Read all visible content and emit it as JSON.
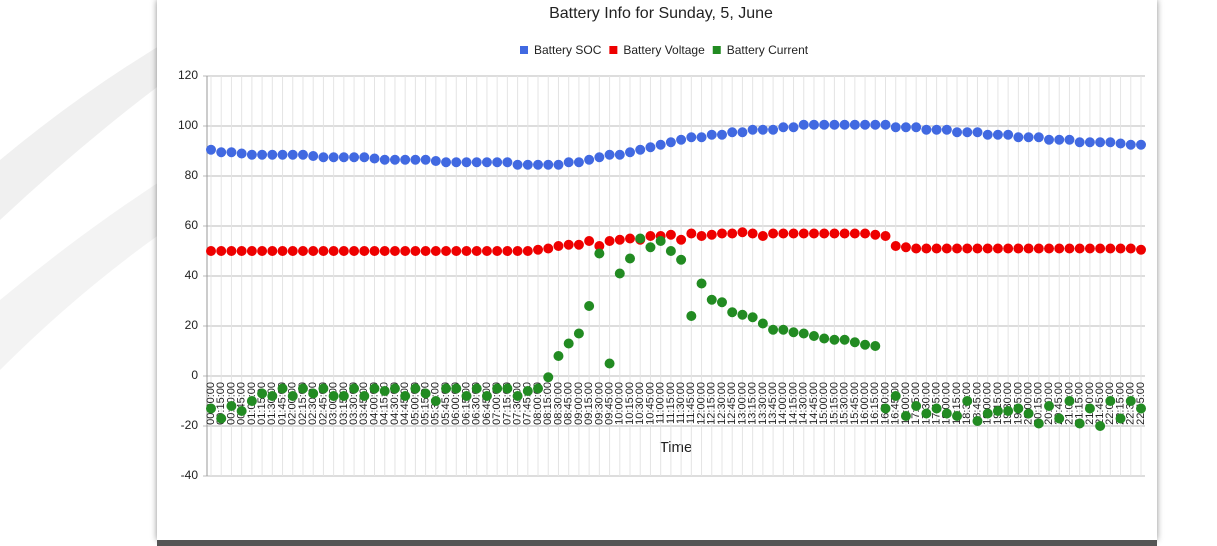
{
  "chart_data": {
    "type": "scatter",
    "title": "Battery Info for Sunday, 5, June",
    "x_label": "Time",
    "categories": [
      "00:00:00",
      "00:15:00",
      "00:30:00",
      "00:45:00",
      "01:00:00",
      "01:15:00",
      "01:30:00",
      "01:45:00",
      "02:00:00",
      "02:15:00",
      "02:30:00",
      "02:45:00",
      "03:00:00",
      "03:15:00",
      "03:30:00",
      "03:45:00",
      "04:00:00",
      "04:15:00",
      "04:30:00",
      "04:45:00",
      "05:00:00",
      "05:15:00",
      "05:30:00",
      "05:45:00",
      "06:00:00",
      "06:15:00",
      "06:30:00",
      "06:45:00",
      "07:00:00",
      "07:15:00",
      "07:30:00",
      "07:45:00",
      "08:00:00",
      "08:15:00",
      "08:30:00",
      "08:45:00",
      "09:00:00",
      "09:15:00",
      "09:30:00",
      "09:45:00",
      "10:00:00",
      "10:15:00",
      "10:30:00",
      "10:45:00",
      "11:00:00",
      "11:15:00",
      "11:30:00",
      "11:45:00",
      "12:00:00",
      "12:15:00",
      "12:30:00",
      "12:45:00",
      "13:00:00",
      "13:15:00",
      "13:30:00",
      "13:45:00",
      "14:00:00",
      "14:15:00",
      "14:30:00",
      "14:45:00",
      "15:00:00",
      "15:15:00",
      "15:30:00",
      "15:45:00",
      "16:00:00",
      "16:15:00",
      "16:30:00",
      "16:45:00",
      "17:00:00",
      "17:15:00",
      "17:30:00",
      "17:45:00",
      "18:00:00",
      "18:15:00",
      "18:30:00",
      "18:45:00",
      "19:00:00",
      "19:15:00",
      "19:30:00",
      "19:45:00",
      "20:00:00",
      "20:15:00",
      "20:30:00",
      "20:45:00",
      "21:00:00",
      "21:15:00",
      "21:30:00",
      "21:45:00",
      "22:00:00",
      "22:15:00",
      "22:30:00",
      "22:45:00"
    ],
    "series": [
      {
        "name": "Battery SOC",
        "color": "#4169e1",
        "line": false,
        "values": [
          90.5,
          89.5,
          89.5,
          89,
          88.5,
          88.5,
          88.5,
          88.5,
          88.5,
          88.5,
          88,
          87.5,
          87.5,
          87.5,
          87.5,
          87.5,
          87,
          86.5,
          86.5,
          86.5,
          86.5,
          86.5,
          86,
          85.5,
          85.5,
          85.5,
          85.5,
          85.5,
          85.5,
          85.5,
          84.5,
          84.5,
          84.5,
          84.5,
          84.5,
          85.5,
          85.5,
          86.5,
          87.5,
          88.5,
          88.5,
          89.5,
          90.5,
          91.5,
          92.5,
          93.5,
          94.5,
          95.5,
          95.5,
          96.5,
          96.5,
          97.5,
          97.5,
          98.5,
          98.5,
          98.5,
          99.5,
          99.5,
          100.5,
          100.5,
          100.5,
          100.5,
          100.5,
          100.5,
          100.5,
          100.5,
          100.5,
          99.5,
          99.5,
          99.5,
          98.5,
          98.5,
          98.5,
          97.5,
          97.5,
          97.5,
          96.5,
          96.5,
          96.5,
          95.5,
          95.5,
          95.5,
          94.5,
          94.5,
          94.5,
          93.5,
          93.5,
          93.5,
          93.5,
          93,
          92.5,
          92.5
        ]
      },
      {
        "name": "Battery Voltage",
        "color": "#ee0000",
        "line": false,
        "values": [
          50,
          50,
          50,
          50,
          50,
          50,
          50,
          50,
          50,
          50,
          50,
          50,
          50,
          50,
          50,
          50,
          50,
          50,
          50,
          50,
          50,
          50,
          50,
          50,
          50,
          50,
          50,
          50,
          50,
          50,
          50,
          50,
          50.5,
          51,
          52,
          52.5,
          52.5,
          54,
          52,
          54,
          54.5,
          55,
          54.5,
          56,
          56,
          56.5,
          54.5,
          57,
          56,
          56.5,
          57,
          57,
          57.5,
          57,
          56,
          57,
          57,
          57,
          57,
          57,
          57,
          57,
          57,
          57,
          57,
          56.5,
          56,
          52,
          51.5,
          51,
          51,
          51,
          51,
          51,
          51,
          51,
          51,
          51,
          51,
          51,
          51,
          51,
          51,
          51,
          51,
          51,
          51,
          51,
          51,
          51,
          51,
          50.5
        ]
      },
      {
        "name": "Battery Current",
        "color": "#228b22",
        "line": true,
        "values": [
          -13,
          -17,
          -12,
          -14,
          -10,
          -7,
          -8,
          -5,
          -8,
          -5,
          -7,
          -5,
          -8,
          -8,
          -5,
          -8,
          -5,
          -6,
          -5,
          -8,
          -5,
          -7,
          -10,
          -5,
          -5,
          -8,
          -5,
          -8,
          -5,
          -5,
          -8,
          -6,
          -5,
          -0.5,
          8,
          13,
          17,
          28,
          49,
          5,
          41,
          47,
          55,
          51.5,
          54,
          50,
          46.5,
          24,
          37,
          30.5,
          29.5,
          25.5,
          24.5,
          23.5,
          21,
          18.5,
          18.5,
          17.5,
          17,
          16,
          15,
          14.5,
          14.5,
          13.5,
          12.5,
          12,
          -13,
          -8,
          -16,
          -12,
          -15,
          -13,
          -15,
          -16,
          -10,
          -18,
          -15,
          -14,
          -14,
          -13,
          -15,
          -19,
          -12,
          -17,
          -10,
          -19,
          -13,
          -20,
          -10,
          -17,
          -10,
          -13
        ]
      }
    ],
    "ylim": [
      -40,
      120
    ],
    "yticks": [
      -40,
      -20,
      0,
      20,
      40,
      60,
      80,
      100,
      120
    ],
    "grid": true,
    "legend": "top"
  }
}
